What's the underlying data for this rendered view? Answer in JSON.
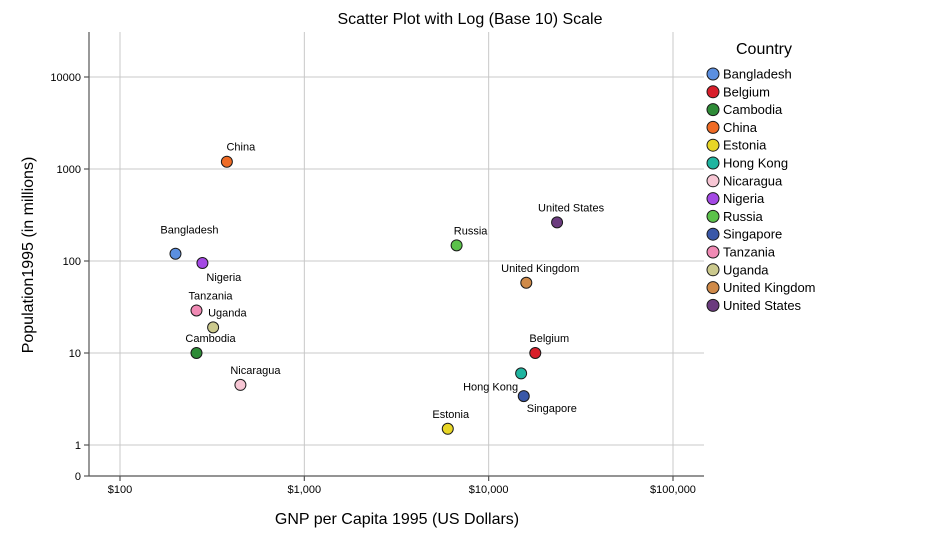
{
  "chart_data": {
    "type": "scatter",
    "title": "Scatter Plot with Log (Base 10) Scale",
    "xlabel": "GNP per Capita 1995 (US Dollars)",
    "ylabel": "Population1995 (in millions)",
    "x_scale": "log10",
    "y_scale": "log10",
    "xlim": [
      70,
      150000
    ],
    "x_ticks": [
      {
        "value": 100,
        "label": "$100"
      },
      {
        "value": 1000,
        "label": "$1,000"
      },
      {
        "value": 10000,
        "label": "$10,000"
      },
      {
        "value": 100000,
        "label": "$100,000"
      }
    ],
    "y_ticks": [
      {
        "value": 0,
        "label": "0"
      },
      {
        "value": 1,
        "label": "1"
      },
      {
        "value": 10,
        "label": "10"
      },
      {
        "value": 100,
        "label": "100"
      },
      {
        "value": 1000,
        "label": "1000"
      },
      {
        "value": 10000,
        "label": "10000"
      }
    ],
    "grid": true,
    "legend": {
      "title": "Country",
      "placement": "right"
    },
    "points": [
      {
        "name": "Bangladesh",
        "x": 200,
        "y": 120,
        "color": "#5b8fe0"
      },
      {
        "name": "Belgium",
        "x": 17900,
        "y": 10,
        "color": "#d81e2a"
      },
      {
        "name": "Cambodia",
        "x": 260,
        "y": 10,
        "color": "#2e8b37"
      },
      {
        "name": "China",
        "x": 380,
        "y": 1200,
        "color": "#ef6b25"
      },
      {
        "name": "Estonia",
        "x": 6000,
        "y": 1.5,
        "color": "#e8d626"
      },
      {
        "name": "Hong Kong",
        "x": 15000,
        "y": 6,
        "color": "#1fb5a0"
      },
      {
        "name": "Nicaragua",
        "x": 450,
        "y": 4.5,
        "color": "#f7c6d4"
      },
      {
        "name": "Nigeria",
        "x": 280,
        "y": 95,
        "color": "#a449e4"
      },
      {
        "name": "Russia",
        "x": 6700,
        "y": 148,
        "color": "#5bc24a"
      },
      {
        "name": "Singapore",
        "x": 15500,
        "y": 3.4,
        "color": "#3a58a8"
      },
      {
        "name": "Tanzania",
        "x": 260,
        "y": 29,
        "color": "#f08ab4"
      },
      {
        "name": "Uganda",
        "x": 320,
        "y": 19,
        "color": "#cbc98d"
      },
      {
        "name": "United Kingdom",
        "x": 16000,
        "y": 58,
        "color": "#cf8a49"
      },
      {
        "name": "United States",
        "x": 23500,
        "y": 263,
        "color": "#6b3b7e"
      }
    ]
  }
}
